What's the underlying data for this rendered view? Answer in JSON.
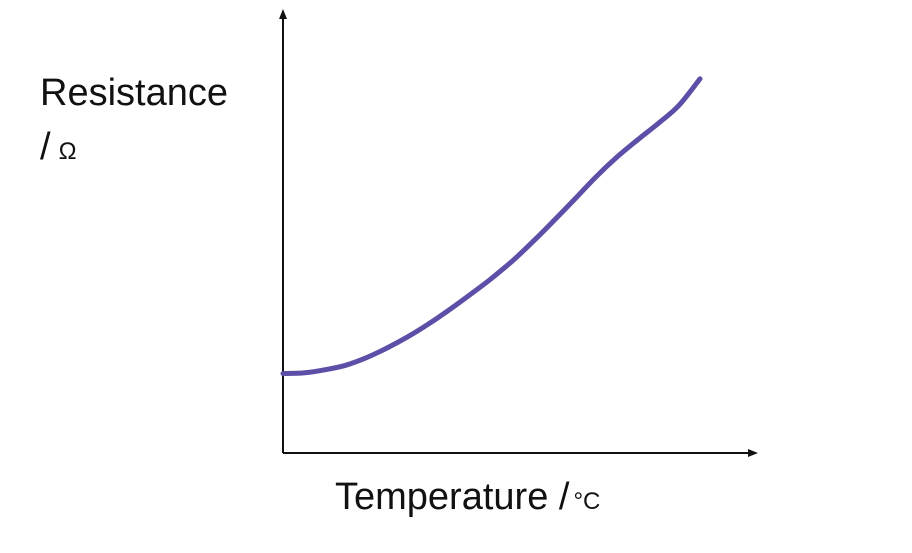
{
  "chart_data": {
    "type": "line",
    "xlabel": "Temperature /",
    "xlabel_unit": "°C",
    "ylabel": "Resistance",
    "ylabel_line2": "/",
    "ylabel_unit": "Ω",
    "xlim": [
      0,
      10
    ],
    "ylim": [
      0,
      10
    ],
    "grid": false,
    "x": [
      0,
      0.5,
      1,
      1.5,
      2,
      2.5,
      3,
      3.5,
      4,
      4.5,
      5,
      5.5,
      6,
      6.5,
      7,
      7.5,
      8,
      8.5,
      9,
      9.5,
      10
    ],
    "series": [
      {
        "values": [
          2.1,
          2.12,
          2.2,
          2.32,
          2.52,
          2.78,
          3.08,
          3.42,
          3.8,
          4.2,
          4.62,
          5.08,
          5.6,
          6.15,
          6.72,
          7.3,
          7.82,
          8.28,
          8.72,
          9.2,
          9.9
        ],
        "color": "#5b4fa8"
      }
    ]
  }
}
